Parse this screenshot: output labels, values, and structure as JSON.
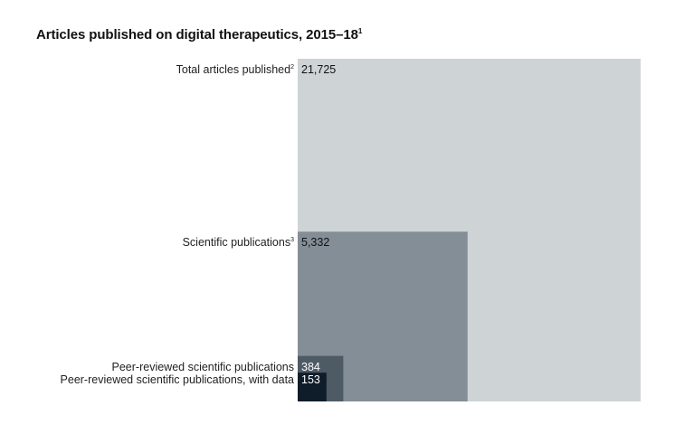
{
  "chart_data": {
    "type": "nested-squares",
    "title": "Articles published on digital therapeutics, 2015–18",
    "title_footnote": "1",
    "categories": [
      {
        "label": "Total articles published",
        "footnote": "2",
        "value": 21725,
        "value_label": "21,725",
        "color": "#ced3d5",
        "value_text_color": "#111111"
      },
      {
        "label": "Scientific publications",
        "footnote": "3",
        "value": 5332,
        "value_label": "5,332",
        "color": "#848e96",
        "value_text_color": "#111111"
      },
      {
        "label": "Peer-reviewed scientific publications",
        "footnote": "",
        "value": 384,
        "value_label": "384",
        "color": "#4e5b65",
        "value_text_color": "#ffffff"
      },
      {
        "label": "Peer-reviewed scientific publications, with data",
        "footnote": "",
        "value": 153,
        "value_label": "153",
        "color": "#0f1d2a",
        "value_text_color": "#ffffff"
      }
    ]
  }
}
